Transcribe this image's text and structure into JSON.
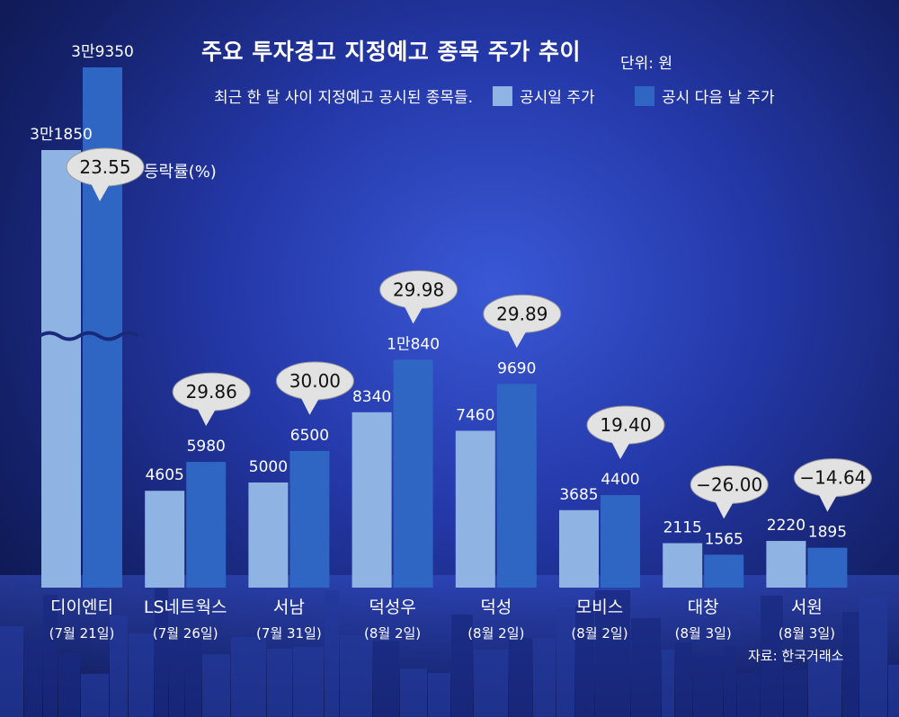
{
  "title": "주요 투자경고 지정예고 종목 주가 추이",
  "unit": "단위: 원",
  "subtitle": "최근 한 달 사이 지정예고 공시된 종목들.",
  "legend": [
    {
      "label": "공시일 주가",
      "color": "#8fb4e3"
    },
    {
      "label": "공시 다음 날 주가",
      "color": "#2f66c4"
    }
  ],
  "change_label": "등락률(%)",
  "source": "자료: 한국거래소",
  "chart_data": {
    "type": "bar",
    "categories": [
      "디이엔티",
      "LS네트웍스",
      "서남",
      "덕성우",
      "덕성",
      "모비스",
      "대창",
      "서원"
    ],
    "dates": [
      "(7월 21일)",
      "(7월 26일)",
      "(7월 31일)",
      "(8월 2일)",
      "(8월 2일)",
      "(8월 2일)",
      "(8월 3일)",
      "(8월 3일)"
    ],
    "series": [
      {
        "name": "공시일 주가",
        "values": [
          31850,
          4605,
          5000,
          8340,
          7460,
          3685,
          2115,
          2220
        ],
        "labels": [
          "3만1850",
          "4605",
          "5000",
          "8340",
          "7460",
          "3685",
          "2115",
          "2220"
        ]
      },
      {
        "name": "공시 다음 날 주가",
        "values": [
          39350,
          5980,
          6500,
          10840,
          9690,
          4400,
          1565,
          1895
        ],
        "labels": [
          "3만9350",
          "5980",
          "6500",
          "1만840",
          "9690",
          "4400",
          "1565",
          "1895"
        ]
      }
    ],
    "change_pct": [
      "23.55",
      "29.86",
      "30.00",
      "29.98",
      "29.89",
      "19.40",
      "−26.00",
      "−14.64"
    ],
    "axis_break": {
      "category": "디이엔티"
    }
  }
}
